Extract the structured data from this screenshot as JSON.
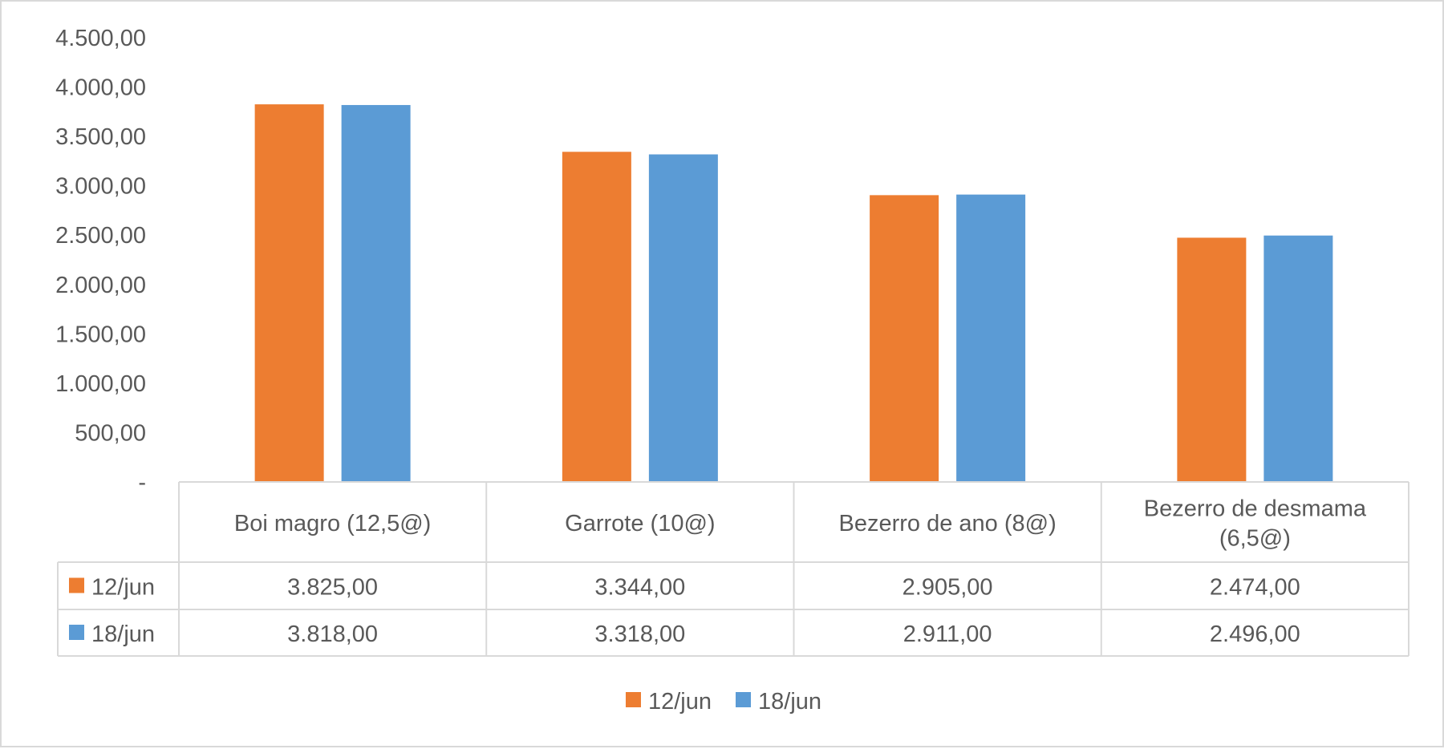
{
  "chart_data": {
    "type": "bar",
    "title": "",
    "xlabel": "",
    "ylabel": "",
    "ylim": [
      0,
      4500
    ],
    "y_ticks": [
      0,
      500,
      1000,
      1500,
      2000,
      2500,
      3000,
      3500,
      4000,
      4500
    ],
    "y_tick_labels": [
      "-",
      "500,00",
      "1.000,00",
      "1.500,00",
      "2.000,00",
      "2.500,00",
      "3.000,00",
      "3.500,00",
      "4.000,00",
      "4.500,00"
    ],
    "grid": false,
    "legend_position": "bottom",
    "data_table": true,
    "categories": [
      [
        "Boi magro (12,5@)"
      ],
      [
        "Garrote (10@)"
      ],
      [
        "Bezerro de ano (8@)"
      ],
      [
        "Bezerro de desmama",
        "(6,5@)"
      ]
    ],
    "series": [
      {
        "name": "12/jun",
        "color": "#ED7D31",
        "values": [
          3825.0,
          3344.0,
          2905.0,
          2474.0
        ],
        "value_labels": [
          "3.825,00",
          "3.344,00",
          "2.905,00",
          "2.474,00"
        ]
      },
      {
        "name": "18/jun",
        "color": "#5B9BD5",
        "values": [
          3818.0,
          3318.0,
          2911.0,
          2496.0
        ],
        "value_labels": [
          "3.818,00",
          "3.318,00",
          "2.911,00",
          "2.496,00"
        ]
      }
    ]
  }
}
